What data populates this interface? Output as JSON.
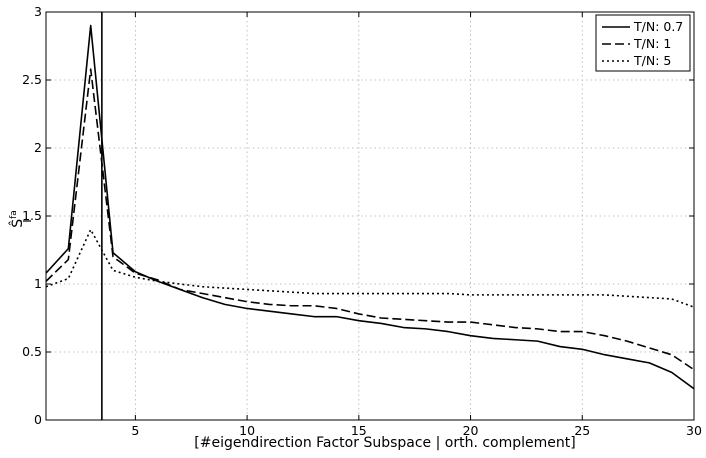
{
  "chart_data": {
    "type": "line",
    "title": "",
    "xlabel": "[#eigendirection Factor Subspace | orth. complement]",
    "ylabel_main": "Ŝ",
    "ylabel_sup": "fa",
    "ylabel_sub": "i",
    "xlim": [
      1,
      30
    ],
    "ylim": [
      0,
      3
    ],
    "xticks": [
      5,
      10,
      15,
      20,
      25,
      30
    ],
    "yticks": [
      0,
      0.5,
      1,
      1.5,
      2,
      2.5,
      3
    ],
    "ytick_labels": [
      "0",
      "0.5",
      "1",
      "1.5",
      "2",
      "2.5",
      "3"
    ],
    "grid": true,
    "legend_position": "top-right",
    "vertical_line_x": 3.5,
    "x": [
      1,
      2,
      3,
      4,
      5,
      6,
      7,
      8,
      9,
      10,
      11,
      12,
      13,
      14,
      15,
      16,
      17,
      18,
      19,
      20,
      21,
      22,
      23,
      24,
      25,
      26,
      27,
      28,
      29,
      30
    ],
    "series": [
      {
        "name": "T/N: 0.7",
        "style": "solid",
        "values": [
          1.08,
          1.26,
          2.9,
          1.23,
          1.09,
          1.02,
          0.96,
          0.9,
          0.85,
          0.82,
          0.8,
          0.78,
          0.76,
          0.76,
          0.73,
          0.71,
          0.68,
          0.67,
          0.65,
          0.62,
          0.6,
          0.59,
          0.58,
          0.54,
          0.52,
          0.48,
          0.45,
          0.42,
          0.35,
          0.23
        ]
      },
      {
        "name": "T/N: 1",
        "style": "dashed",
        "values": [
          1.02,
          1.18,
          2.58,
          1.2,
          1.08,
          1.03,
          0.96,
          0.93,
          0.9,
          0.87,
          0.85,
          0.84,
          0.84,
          0.82,
          0.78,
          0.75,
          0.74,
          0.73,
          0.72,
          0.72,
          0.7,
          0.68,
          0.67,
          0.65,
          0.65,
          0.62,
          0.58,
          0.53,
          0.48,
          0.37
        ]
      },
      {
        "name": "T/N: 5",
        "style": "dotted",
        "values": [
          0.98,
          1.04,
          1.4,
          1.1,
          1.05,
          1.02,
          1.0,
          0.98,
          0.97,
          0.96,
          0.95,
          0.94,
          0.93,
          0.93,
          0.93,
          0.93,
          0.93,
          0.93,
          0.93,
          0.92,
          0.92,
          0.92,
          0.92,
          0.92,
          0.92,
          0.92,
          0.91,
          0.9,
          0.89,
          0.83
        ]
      }
    ]
  }
}
